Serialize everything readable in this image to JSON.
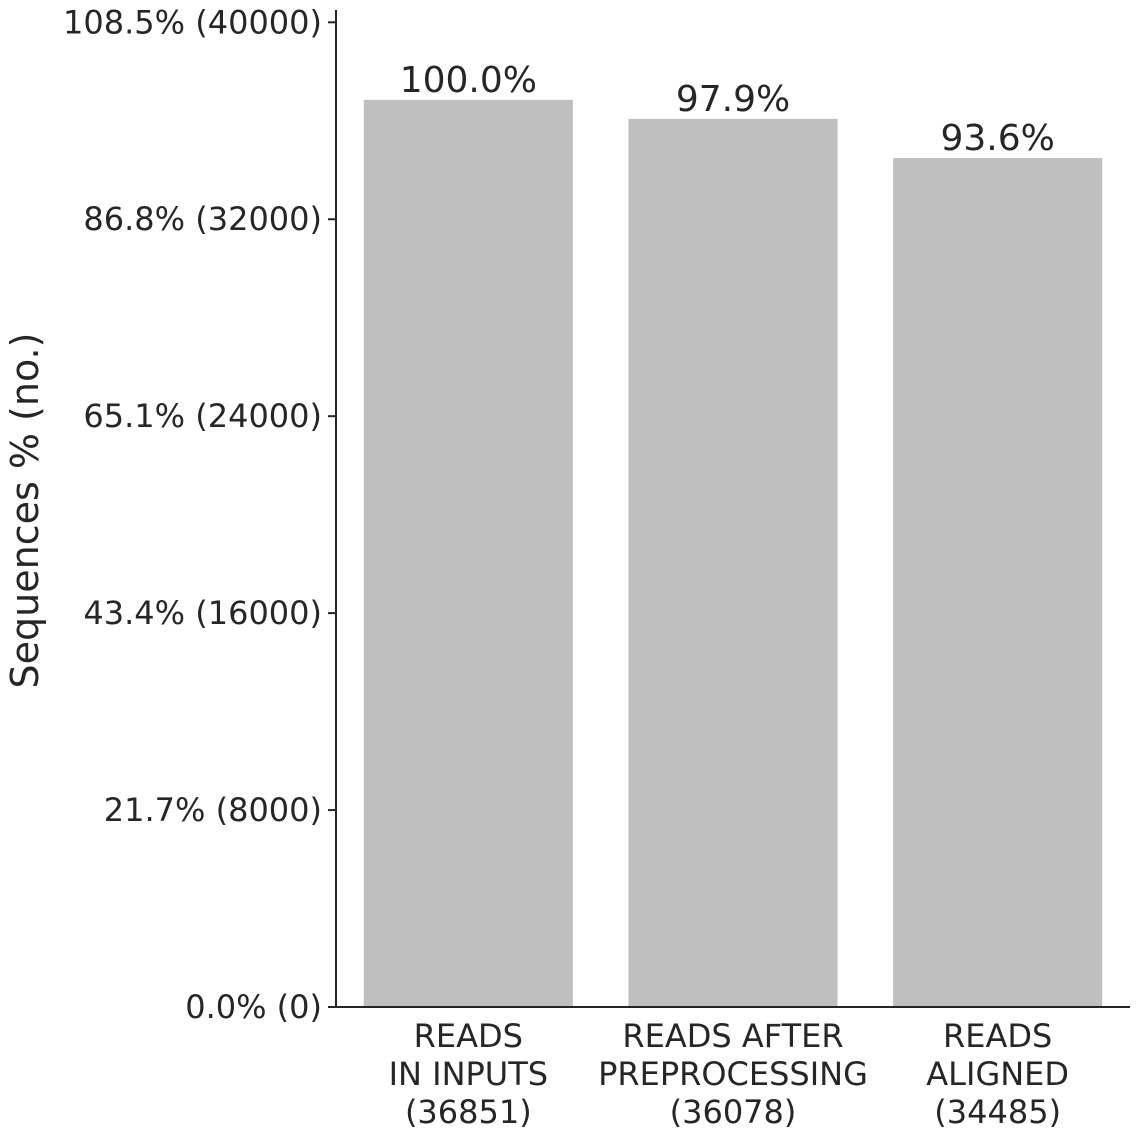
{
  "chart_data": {
    "type": "bar",
    "categories": [
      [
        "READS",
        "IN INPUTS",
        "(36851)"
      ],
      [
        "READS AFTER",
        "PREPROCESSING",
        "(36078)"
      ],
      [
        "READS",
        "ALIGNED",
        "(34485)"
      ]
    ],
    "values": [
      36851,
      36078,
      34485
    ],
    "bar_labels": [
      "100.0%",
      "97.9%",
      "93.6%"
    ],
    "ylabel": "Sequences % (no.)",
    "xlabel": "",
    "title": "",
    "ylim": [
      0,
      40500
    ],
    "yticks": [
      0,
      8000,
      16000,
      24000,
      32000,
      40000
    ],
    "ytick_labels": [
      "0.0% (0)",
      "21.7% (8000)",
      "43.4% (16000)",
      "65.1% (24000)",
      "86.8% (32000)",
      "108.5% (40000)"
    ],
    "bar_color": "#bfbfbf",
    "grid": false,
    "legend": "none"
  }
}
